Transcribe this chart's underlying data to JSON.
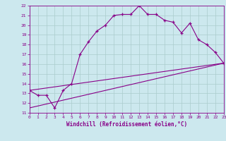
{
  "xlabel": "Windchill (Refroidissement éolien,°C)",
  "bg_color": "#cce8ee",
  "grid_color": "#aacccc",
  "line_color": "#880088",
  "xlim": [
    0,
    23
  ],
  "ylim": [
    11,
    22
  ],
  "xticks": [
    0,
    1,
    2,
    3,
    4,
    5,
    6,
    7,
    8,
    9,
    10,
    11,
    12,
    13,
    14,
    15,
    16,
    17,
    18,
    19,
    20,
    21,
    22,
    23
  ],
  "yticks": [
    11,
    12,
    13,
    14,
    15,
    16,
    17,
    18,
    19,
    20,
    21,
    22
  ],
  "curve1_x": [
    0,
    1,
    2,
    3,
    4,
    5,
    6,
    7,
    8,
    9,
    10,
    11,
    12,
    13,
    14,
    15,
    16,
    17,
    18,
    19,
    20,
    21,
    22,
    23
  ],
  "curve1_y": [
    13.3,
    12.8,
    12.8,
    11.5,
    13.3,
    14.0,
    17.0,
    18.3,
    19.4,
    20.0,
    21.0,
    21.1,
    21.1,
    22.0,
    21.1,
    21.1,
    20.5,
    20.3,
    19.2,
    20.2,
    18.5,
    18.0,
    17.2,
    16.1
  ],
  "curve2_x": [
    0,
    23
  ],
  "curve2_y": [
    13.3,
    16.1
  ],
  "curve3_x": [
    0,
    23
  ],
  "curve3_y": [
    11.5,
    16.1
  ]
}
